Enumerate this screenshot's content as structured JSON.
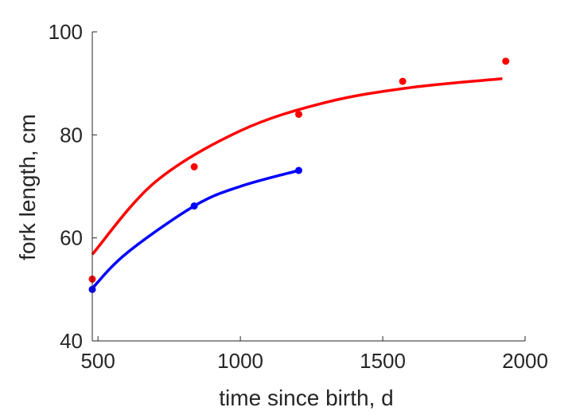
{
  "chart_data": {
    "type": "scatter",
    "xlabel": "time since birth, d",
    "ylabel": "fork length, cm",
    "xlim": [
      480,
      2000
    ],
    "ylim": [
      40,
      100
    ],
    "xticks": [
      500,
      1000,
      1500,
      2000
    ],
    "yticks": [
      40,
      60,
      80,
      100
    ],
    "grid": false,
    "series": [
      {
        "color": "#ff0000",
        "points": [
          {
            "x": 480,
            "y": 52.0
          },
          {
            "x": 838,
            "y": 73.8
          },
          {
            "x": 1205,
            "y": 84.0
          },
          {
            "x": 1570,
            "y": 90.4
          },
          {
            "x": 1932,
            "y": 94.3
          }
        ],
        "fit": [
          {
            "x": 480,
            "y": 56.8
          },
          {
            "x": 700,
            "y": 70.8
          },
          {
            "x": 1000,
            "y": 80.8
          },
          {
            "x": 1300,
            "y": 86.3
          },
          {
            "x": 1600,
            "y": 89.2
          },
          {
            "x": 1920,
            "y": 90.9
          }
        ]
      },
      {
        "color": "#0000ff",
        "points": [
          {
            "x": 480,
            "y": 50.0
          },
          {
            "x": 838,
            "y": 66.2
          },
          {
            "x": 1205,
            "y": 73.1
          }
        ],
        "fit": [
          {
            "x": 480,
            "y": 50.2
          },
          {
            "x": 600,
            "y": 57.0
          },
          {
            "x": 838,
            "y": 66.2
          },
          {
            "x": 1000,
            "y": 70.0
          },
          {
            "x": 1205,
            "y": 73.1
          }
        ]
      }
    ]
  }
}
